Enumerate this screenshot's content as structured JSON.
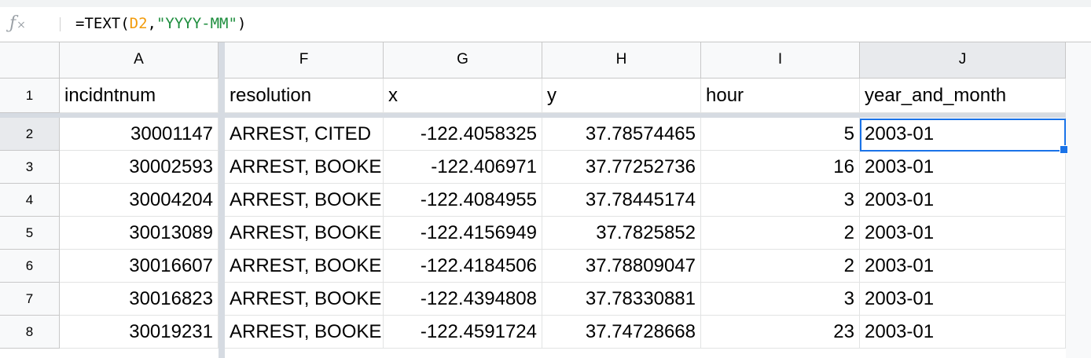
{
  "formula_bar": {
    "fx_label": "fx",
    "formula_prefix": "=TEXT(",
    "formula_ref": "D2",
    "formula_comma": ",",
    "formula_string": "\"YYYY-MM\"",
    "formula_suffix": ")"
  },
  "columns": [
    "A",
    "F",
    "G",
    "H",
    "I",
    "J"
  ],
  "header_row": {
    "row_number": "1",
    "cells": [
      "incidntnum",
      "resolution",
      "x",
      "y",
      "hour",
      "year_and_month"
    ]
  },
  "rows": [
    {
      "row_number": "2",
      "cells": [
        "30001147",
        "ARREST, CITED",
        "-122.4058325",
        "37.78574465",
        "5",
        "2003-01"
      ]
    },
    {
      "row_number": "3",
      "cells": [
        "30002593",
        "ARREST, BOOKED",
        "-122.406971",
        "37.77252736",
        "16",
        "2003-01"
      ]
    },
    {
      "row_number": "4",
      "cells": [
        "30004204",
        "ARREST, BOOKED",
        "-122.4084955",
        "37.78445174",
        "3",
        "2003-01"
      ]
    },
    {
      "row_number": "5",
      "cells": [
        "30013089",
        "ARREST, BOOKED",
        "-122.4156949",
        "37.7825852",
        "2",
        "2003-01"
      ]
    },
    {
      "row_number": "6",
      "cells": [
        "30016607",
        "ARREST, BOOKED",
        "-122.4184506",
        "37.78809047",
        "2",
        "2003-01"
      ]
    },
    {
      "row_number": "7",
      "cells": [
        "30016823",
        "ARREST, BOOKED",
        "-122.4394808",
        "37.78330881",
        "3",
        "2003-01"
      ]
    },
    {
      "row_number": "8",
      "cells": [
        "30019231",
        "ARREST, BOOKED",
        "-122.4591724",
        "37.74728668",
        "23",
        "2003-01"
      ]
    }
  ],
  "selection": {
    "cell": "J2"
  },
  "colors": {
    "selection": "#1a73e8",
    "formula_ref": "#f29b0b",
    "formula_string": "#1e8e3e"
  }
}
